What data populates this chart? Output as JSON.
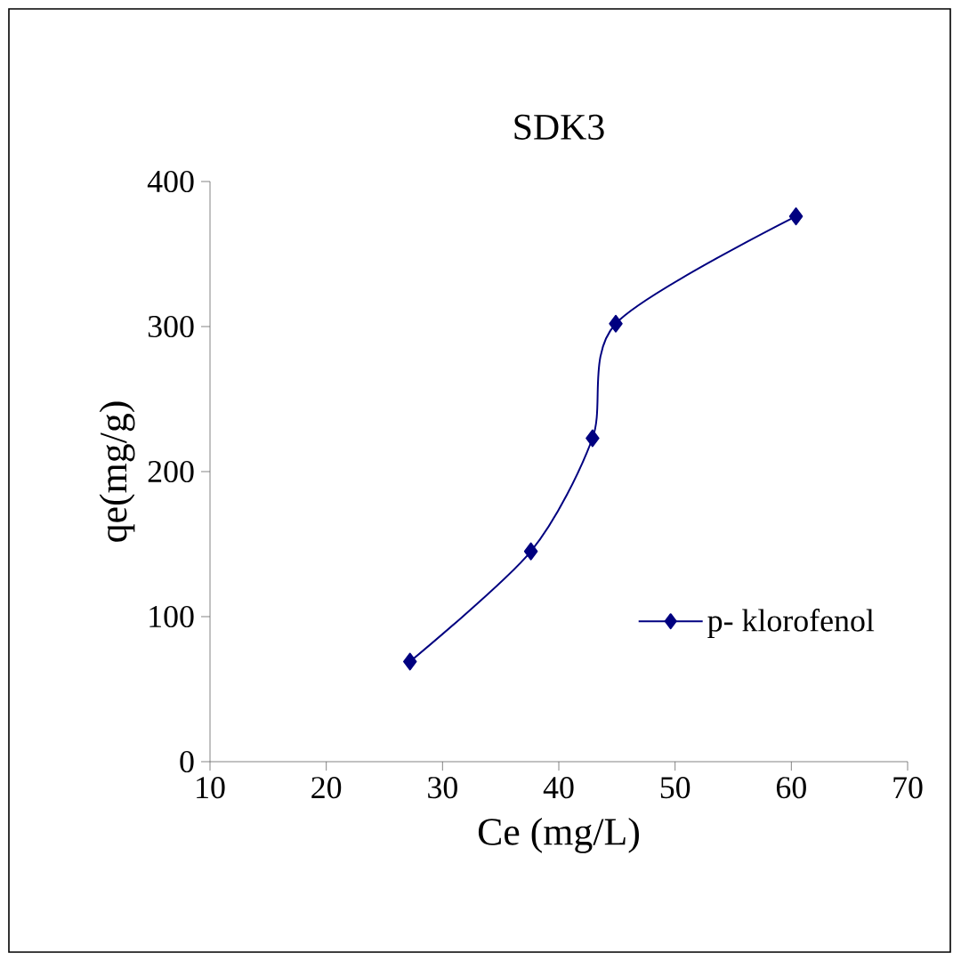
{
  "chart_data": {
    "type": "line",
    "title": "SDK3",
    "xlabel": "Ce (mg/L)",
    "ylabel": "qe(mg/g)",
    "x": [
      27.2,
      37.6,
      42.9,
      44.9,
      60.4
    ],
    "series": [
      {
        "name": "p- klorofenol",
        "color": "#000080",
        "values": [
          69,
          145,
          223,
          302,
          376
        ]
      }
    ],
    "xlim": [
      10,
      70
    ],
    "ylim": [
      0,
      400
    ],
    "xticks": [
      10,
      20,
      30,
      40,
      50,
      60,
      70
    ],
    "yticks": [
      0,
      100,
      200,
      300,
      400
    ],
    "marker": "diamond",
    "line_style": "solid",
    "legend": "right"
  }
}
